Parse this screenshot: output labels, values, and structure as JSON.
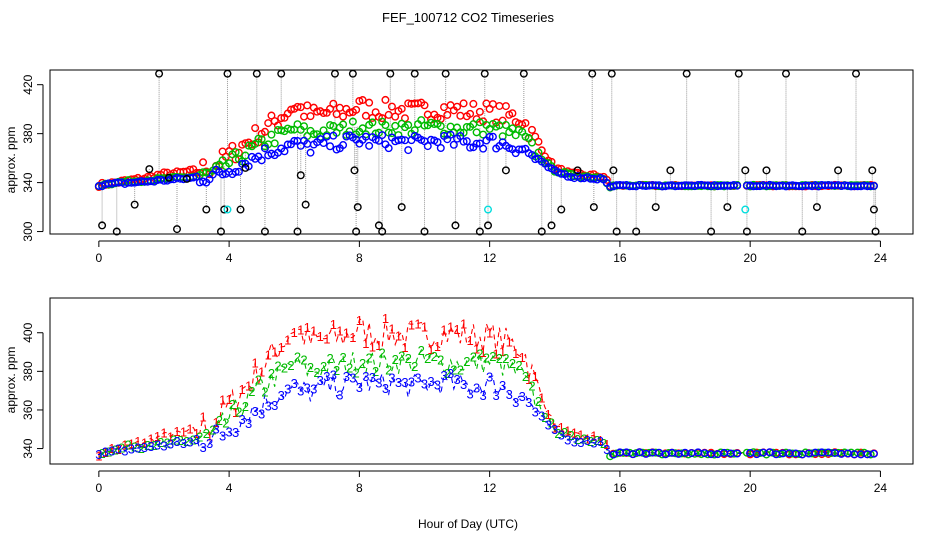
{
  "title": "FEF_100712  CO2 Timeseries",
  "xlabel": "Hour of Day (UTC)",
  "colors": {
    "inlet1": "#ff0000",
    "inlet2": "#00bb00",
    "inlet3": "#0000ff",
    "raw": "#000000",
    "flagged": "#00dddd",
    "connector": "#999999"
  },
  "chart_data": [
    {
      "type": "scatter",
      "panel": "top",
      "ylabel": "approx. ppm",
      "xlim": [
        -1.5,
        25
      ],
      "ylim": [
        298,
        432
      ],
      "xticks": [
        0,
        4,
        8,
        12,
        16,
        20,
        24
      ],
      "yticks": [
        300,
        340,
        380,
        420
      ],
      "ytick_labels": [
        "300",
        "340",
        "380",
        "420"
      ],
      "grid": false,
      "series": [
        {
          "marker": "circle",
          "color": "#000000",
          "x": [
            0.1,
            0.55,
            1.1,
            1.55,
            1.85,
            2.15,
            2.4,
            2.7,
            3.3,
            3.75,
            3.85,
            3.95,
            4.35,
            4.5,
            4.85,
            5.1,
            5.6,
            6.1,
            6.2,
            6.35,
            7.25,
            7.8,
            7.85,
            7.95,
            7.9,
            8.6,
            8.7,
            8.95,
            9.3,
            9.7,
            10.0,
            10.65,
            10.95,
            11.7,
            11.85,
            11.95,
            12.5,
            13.05,
            13.6,
            13.9,
            14.2,
            14.7,
            15.15,
            15.2,
            15.75,
            15.8,
            15.9,
            16.5,
            17.1,
            17.55,
            18.05,
            18.8,
            19.3,
            19.65,
            19.85,
            19.9,
            20.5,
            21.1,
            21.6,
            22.05,
            22.7,
            23.25,
            23.75,
            23.8,
            23.85
          ],
          "y": [
            305,
            300,
            322,
            351,
            436,
            344,
            302,
            343,
            318,
            300,
            318,
            436,
            318,
            352,
            436,
            300,
            436,
            300,
            346,
            322,
            436,
            436,
            350,
            320,
            300,
            305,
            300,
            436,
            320,
            436,
            300,
            436,
            305,
            300,
            436,
            305,
            350,
            436,
            300,
            305,
            318,
            350,
            436,
            320,
            436,
            350,
            300,
            300,
            320,
            350,
            436,
            300,
            320,
            436,
            350,
            300,
            350,
            436,
            300,
            320,
            350,
            436,
            350,
            318,
            300
          ]
        },
        {
          "marker": "circle",
          "color": "#00dddd",
          "x": [
            3.95,
            11.95,
            19.85
          ],
          "y": [
            318,
            318,
            318
          ]
        }
      ]
    },
    {
      "type": "scatter",
      "panel": "bottom",
      "ylabel": "approx. ppm",
      "xlim": [
        -1.5,
        25
      ],
      "ylim": [
        332,
        418
      ],
      "xticks": [
        0,
        4,
        8,
        12,
        16,
        20,
        24
      ],
      "yticks": [
        340,
        360,
        380,
        400
      ],
      "ytick_labels": [
        "340",
        "360",
        "380",
        "400"
      ],
      "grid": false
    }
  ],
  "profiles": {
    "hours": [
      0,
      0.5,
      1,
      1.5,
      2,
      2.5,
      3,
      3.5,
      4,
      4.5,
      5,
      5.5,
      6,
      6.5,
      7,
      7.5,
      8,
      8.5,
      9,
      9.5,
      10,
      10.5,
      11,
      11.5,
      12,
      12.5,
      13,
      13.5,
      14,
      14.5,
      15,
      15.5,
      15.7
    ],
    "inlet1": [
      338,
      340,
      342,
      344,
      347,
      348,
      350,
      353,
      362,
      372,
      382,
      392,
      403,
      395,
      397,
      398,
      402,
      399,
      400,
      398,
      399,
      400,
      399,
      398,
      398,
      395,
      392,
      370,
      352,
      347,
      346,
      345,
      337
    ],
    "inlet2": [
      338,
      340,
      341,
      342,
      343,
      344,
      345,
      347,
      356,
      364,
      372,
      378,
      384,
      380,
      382,
      383,
      386,
      384,
      385,
      384,
      386,
      385,
      384,
      384,
      385,
      382,
      378,
      362,
      350,
      346,
      345,
      344,
      337
    ],
    "inlet3": [
      338,
      339,
      340,
      341,
      342,
      343,
      344,
      345,
      350,
      357,
      363,
      368,
      371,
      369,
      372,
      373,
      375,
      373,
      374,
      372,
      373,
      374,
      373,
      372,
      374,
      371,
      368,
      358,
      349,
      345,
      344,
      343,
      336
    ],
    "night_hours": [
      16,
      24
    ],
    "night_level": 337.5,
    "gap": [
      19.7,
      19.9
    ]
  }
}
